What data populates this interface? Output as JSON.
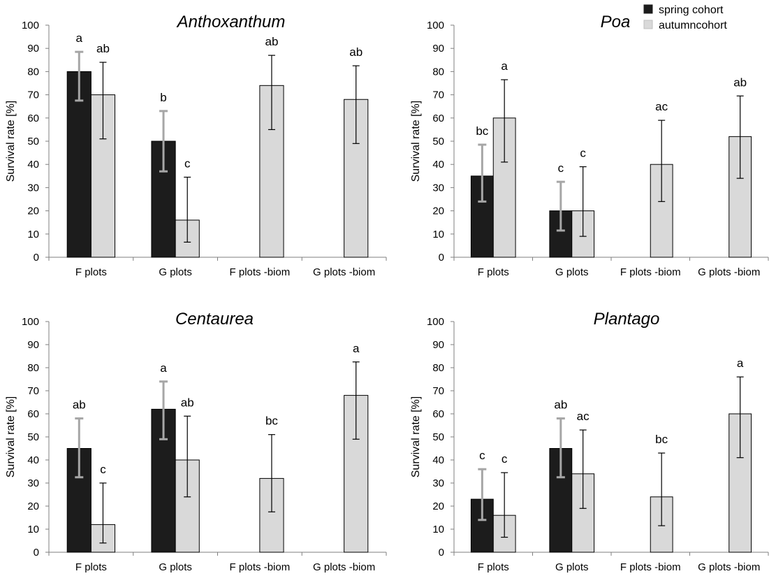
{
  "colors": {
    "spring": "#1c1c1c",
    "autumn": "#d9d9d9",
    "spring_error": "#a6a6a6",
    "autumn_error": "#000000",
    "axis": "#7f7f7f"
  },
  "legend": {
    "position": "top-right",
    "items": [
      {
        "label": "spring cohort",
        "color": "#1c1c1c"
      },
      {
        "label": "autumncohort",
        "color": "#d9d9d9"
      }
    ]
  },
  "chart_data": [
    {
      "type": "bar",
      "title": "Anthoxanthum",
      "ylabel": "Survival rate [%]",
      "xlabel": "",
      "ylim": [
        0,
        100
      ],
      "yticks": [
        "0",
        "10",
        "20",
        "30",
        "40",
        "50",
        "60",
        "70",
        "80",
        "90",
        "100"
      ],
      "categories": [
        "F plots",
        "G plots",
        "F plots -biom",
        "G plots -biom"
      ],
      "series": [
        {
          "name": "spring cohort",
          "values": [
            80,
            50,
            null,
            null
          ],
          "err_low": [
            67.5,
            37,
            null,
            null
          ],
          "err_high": [
            88.5,
            63,
            null,
            null
          ],
          "labels": [
            "a",
            "b",
            "",
            ""
          ]
        },
        {
          "name": "autumncohort",
          "values": [
            70,
            16,
            74,
            68
          ],
          "err_low": [
            51,
            6.5,
            55,
            49
          ],
          "err_high": [
            84,
            34.5,
            87,
            82.5
          ],
          "labels": [
            "ab",
            "c",
            "ab",
            "ab"
          ]
        }
      ]
    },
    {
      "type": "bar",
      "title": "Poa",
      "ylabel": "Survival rate [%]",
      "xlabel": "",
      "ylim": [
        0,
        100
      ],
      "yticks": [
        "0",
        "10",
        "20",
        "30",
        "40",
        "50",
        "60",
        "70",
        "80",
        "90",
        "100"
      ],
      "categories": [
        "F plots",
        "G plots",
        "F plots -biom",
        "G plots -biom"
      ],
      "series": [
        {
          "name": "spring cohort",
          "values": [
            35,
            20,
            null,
            null
          ],
          "err_low": [
            24,
            11.5,
            null,
            null
          ],
          "err_high": [
            48.5,
            32.5,
            null,
            null
          ],
          "labels": [
            "bc",
            "c",
            "",
            ""
          ]
        },
        {
          "name": "autumncohort",
          "values": [
            60,
            20,
            40,
            52
          ],
          "err_low": [
            41,
            9,
            24,
            34
          ],
          "err_high": [
            76.5,
            39,
            59,
            69.5
          ],
          "labels": [
            "a",
            "c",
            "ac",
            "ab"
          ]
        }
      ]
    },
    {
      "type": "bar",
      "title": "Centaurea",
      "ylabel": "Survival rate [%]",
      "xlabel": "",
      "ylim": [
        0,
        100
      ],
      "yticks": [
        "0",
        "10",
        "20",
        "30",
        "40",
        "50",
        "60",
        "70",
        "80",
        "90",
        "100"
      ],
      "categories": [
        "F plots",
        "G plots",
        "F plots -biom",
        "G plots -biom"
      ],
      "series": [
        {
          "name": "spring cohort",
          "values": [
            45,
            62,
            null,
            null
          ],
          "err_low": [
            32.5,
            49,
            null,
            null
          ],
          "err_high": [
            58,
            74,
            null,
            null
          ],
          "labels": [
            "ab",
            "a",
            "",
            ""
          ]
        },
        {
          "name": "autumncohort",
          "values": [
            12,
            40,
            32,
            68
          ],
          "err_low": [
            4,
            24,
            17.5,
            49
          ],
          "err_high": [
            30,
            59,
            51,
            82.5
          ],
          "labels": [
            "c",
            "ab",
            "bc",
            "a"
          ]
        }
      ]
    },
    {
      "type": "bar",
      "title": "Plantago",
      "ylabel": "Survival rate [%]",
      "xlabel": "",
      "ylim": [
        0,
        100
      ],
      "yticks": [
        "0",
        "10",
        "20",
        "30",
        "40",
        "50",
        "60",
        "70",
        "80",
        "90",
        "100"
      ],
      "categories": [
        "F plots",
        "G plots",
        "F plots -biom",
        "G plots -biom"
      ],
      "series": [
        {
          "name": "spring cohort",
          "values": [
            23,
            45,
            null,
            null
          ],
          "err_low": [
            14,
            32.5,
            null,
            null
          ],
          "err_high": [
            36,
            58,
            null,
            null
          ],
          "labels": [
            "c",
            "ab",
            "",
            ""
          ]
        },
        {
          "name": "autumncohort",
          "values": [
            16,
            34,
            24,
            60
          ],
          "err_low": [
            6.5,
            19,
            11.5,
            41
          ],
          "err_high": [
            34.5,
            53,
            43,
            76
          ],
          "labels": [
            "c",
            "ac",
            "bc",
            "a"
          ]
        }
      ]
    }
  ]
}
